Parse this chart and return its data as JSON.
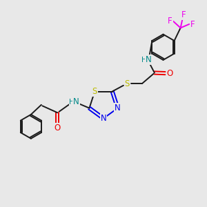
{
  "bg_color": "#e8e8e8",
  "colors": {
    "C": "#1a1a1a",
    "N": "#0000ee",
    "S": "#bbbb00",
    "O": "#ee0000",
    "F": "#ee00ee",
    "NH": "#008888"
  },
  "lw": 1.4,
  "fs": 8.5
}
